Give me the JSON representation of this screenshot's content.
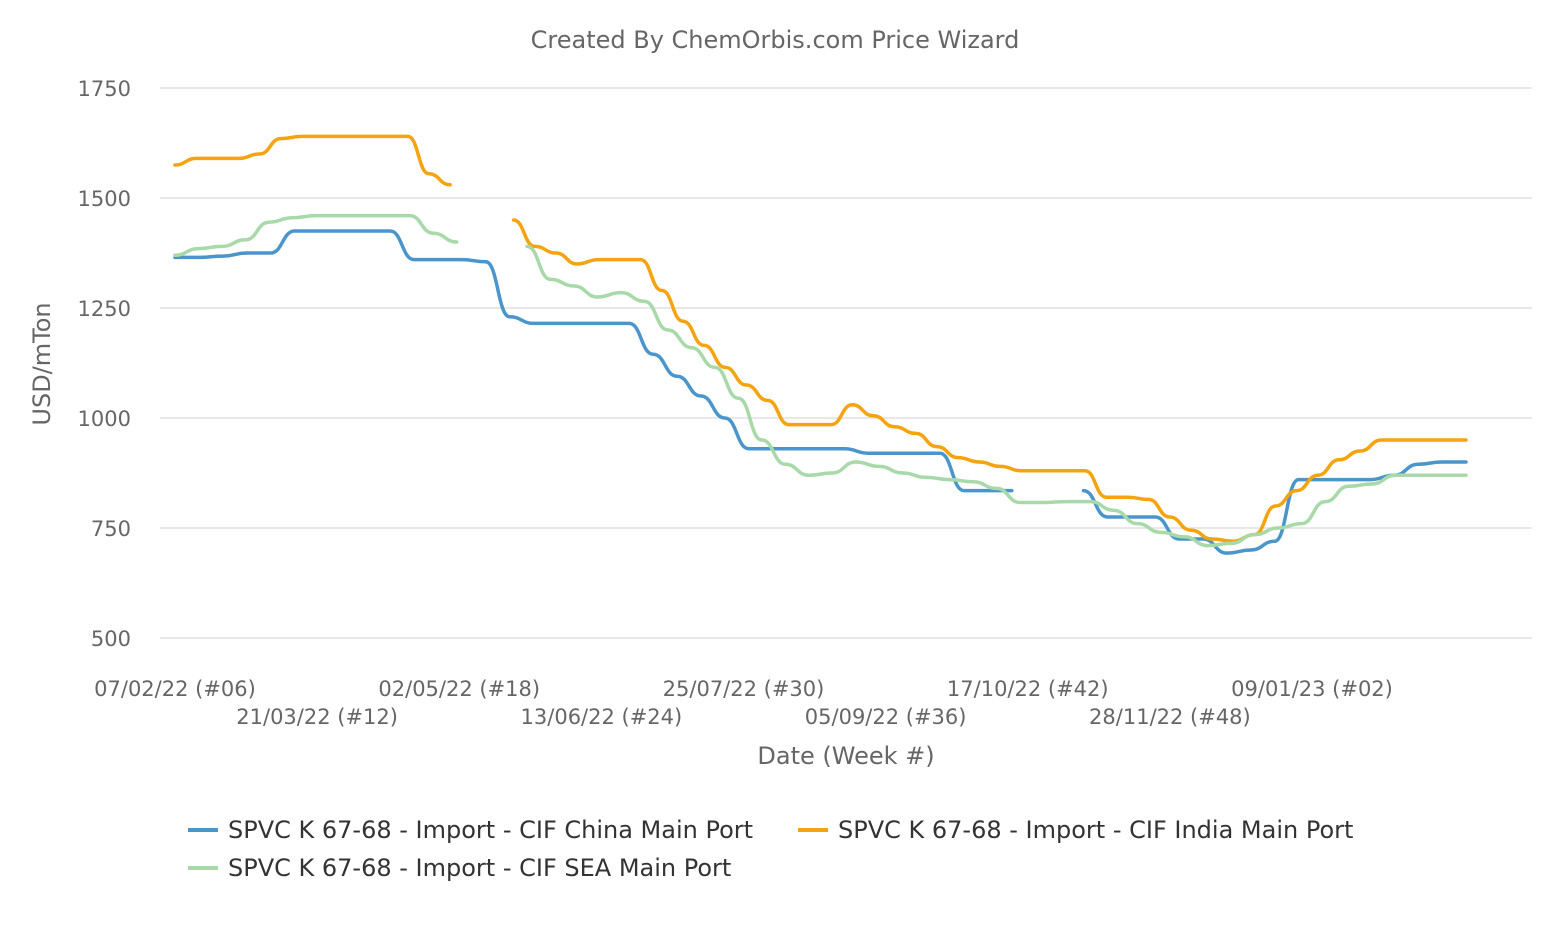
{
  "chart_data": {
    "type": "line",
    "title": "Created By ChemOrbis.com Price Wizard",
    "xlabel": "Date (Week #)",
    "ylabel": "USD/mTon",
    "ylim": [
      500,
      1750
    ],
    "yticks": [
      500,
      750,
      1000,
      1250,
      1500,
      1750
    ],
    "grid": true,
    "legend_position": "bottom",
    "x_tick_labels": [
      "07/02/22 (#06)",
      "21/03/22 (#12)",
      "02/05/22 (#18)",
      "13/06/22 (#24)",
      "25/07/22 (#30)",
      "05/09/22 (#36)",
      "17/10/22 (#42)",
      "28/11/22 (#48)",
      "09/01/23 (#02)"
    ],
    "x_tick_weeks": [
      0,
      6,
      12,
      18,
      24,
      30,
      36,
      42,
      48
    ],
    "x_unit": "weeks since 07/02/22",
    "series": [
      {
        "name": "SPVC K 67-68 - Import - CIF China Main Port",
        "color": "#4a95cc",
        "values": [
          1365,
          1365,
          1368,
          1375,
          1375,
          1425,
          1425,
          1425,
          1425,
          1425,
          1360,
          1360,
          1360,
          1355,
          1230,
          1215,
          1215,
          1215,
          1215,
          1215,
          1145,
          1095,
          1050,
          1000,
          930,
          930,
          930,
          930,
          930,
          920,
          920,
          920,
          920,
          835,
          835,
          835,
          null,
          null,
          835,
          775,
          775,
          775,
          725,
          725,
          693,
          700,
          720,
          860,
          860,
          860,
          860,
          870,
          895,
          900,
          900
        ]
      },
      {
        "name": "SPVC K 67-68 - Import - CIF India Main Port",
        "color": "#f5a30f",
        "values": [
          1575,
          1590,
          1590,
          1590,
          1600,
          1635,
          1640,
          1640,
          1640,
          1640,
          1640,
          1640,
          1555,
          1530,
          null,
          null,
          1450,
          1390,
          1375,
          1350,
          1360,
          1360,
          1360,
          1290,
          1220,
          1165,
          1115,
          1075,
          1040,
          985,
          985,
          985,
          1030,
          1005,
          980,
          965,
          935,
          910,
          900,
          890,
          880,
          880,
          880,
          880,
          820,
          820,
          815,
          775,
          745,
          725,
          720,
          735,
          800,
          835,
          870,
          905,
          925,
          950,
          950,
          950,
          950,
          950
        ]
      },
      {
        "name": "SPVC K 67-68 - Import - CIF SEA Main Port",
        "color": "#a8d9a8",
        "values": [
          1370,
          1385,
          1390,
          1405,
          1445,
          1455,
          1460,
          1460,
          1460,
          1460,
          1460,
          1420,
          1400,
          null,
          null,
          1390,
          1315,
          1300,
          1275,
          1285,
          1265,
          1200,
          1160,
          1115,
          1045,
          950,
          895,
          870,
          875,
          900,
          890,
          875,
          865,
          860,
          855,
          840,
          808,
          808,
          810,
          810,
          790,
          760,
          740,
          730,
          710,
          715,
          735,
          750,
          760,
          810,
          845,
          850,
          870,
          870,
          870,
          870
        ]
      }
    ]
  }
}
